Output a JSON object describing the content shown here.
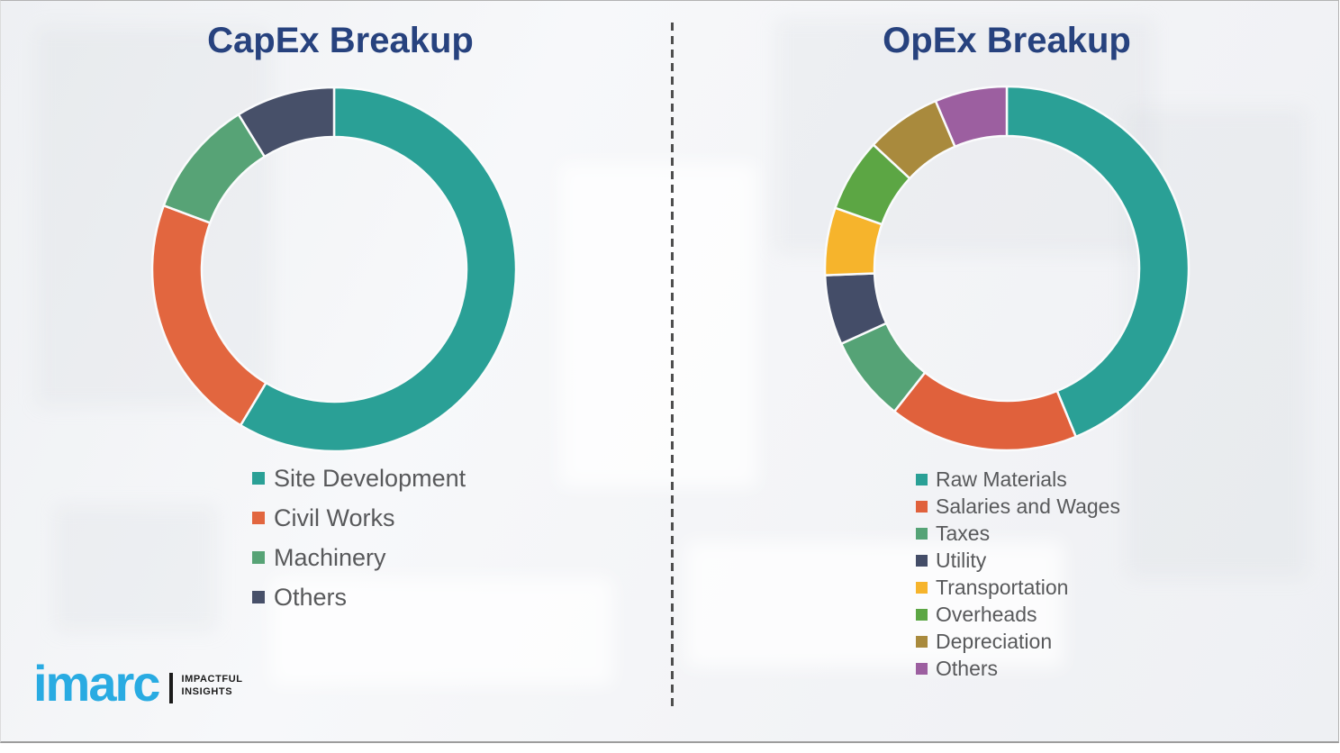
{
  "theme": {
    "title_color": "#27427e",
    "legend_text_color": "#58595b",
    "divider_color": "#4e4e4e",
    "background_color": "#f3f4f6",
    "segment_gap_color": "#fafbfc",
    "logo_color": "#29abe2"
  },
  "chart_data": [
    {
      "type": "pie",
      "subtype": "donut",
      "title": "CapEx Breakup",
      "categories": [
        "Site Development",
        "Civil Works",
        "Machinery",
        "Others"
      ],
      "values": [
        58.6,
        22.1,
        10.5,
        8.8
      ],
      "colors": [
        "#2aa096",
        "#e2663f",
        "#57a376",
        "#475069"
      ],
      "start_angle_deg": 0,
      "direction": "clockwise",
      "data_labels_shown": false,
      "legend_position": "below-left"
    },
    {
      "type": "pie",
      "subtype": "donut",
      "title": "OpEx Breakup",
      "categories": [
        "Raw Materials",
        "Salaries and Wages",
        "Taxes",
        "Utility",
        "Transportation",
        "Overheads",
        "Depreciation",
        "Others"
      ],
      "values": [
        43.8,
        16.8,
        7.6,
        6.2,
        6.0,
        6.5,
        6.7,
        6.4
      ],
      "colors": [
        "#2aa096",
        "#e0613c",
        "#55a376",
        "#444d68",
        "#f6b42c",
        "#5ca644",
        "#a98a3d",
        "#9c5fa0"
      ],
      "start_angle_deg": 0,
      "direction": "clockwise",
      "data_labels_shown": false,
      "legend_position": "below-left"
    }
  ],
  "branding": {
    "logo_text": "imarc",
    "tagline_line1": "IMPACTFUL",
    "tagline_line2": "INSIGHTS"
  }
}
